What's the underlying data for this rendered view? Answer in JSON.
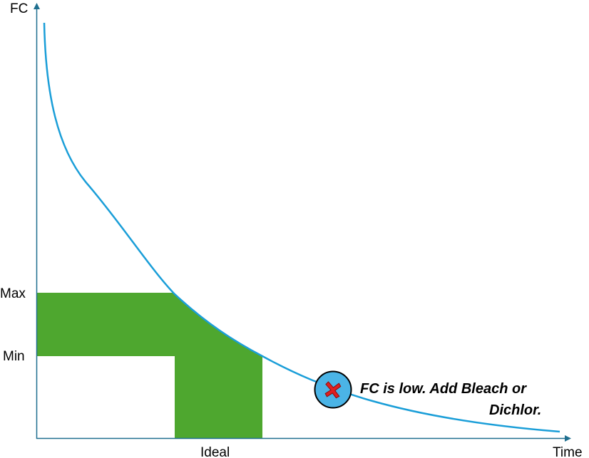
{
  "axes": {
    "y_label": "FC",
    "x_label": "Time"
  },
  "levels": {
    "max_label": "Max",
    "min_label": "Min",
    "ideal_label": "Ideal"
  },
  "status": {
    "icon": "x-mark-icon",
    "line1": "FC is low. Add Bleach or",
    "line2": "Dichlor."
  },
  "colors": {
    "curve": "#1a9ed8",
    "axis": "#1f6f8f",
    "ideal_zone": "#4ea72f",
    "marker_fill": "#4bb4e6",
    "marker_x": "#e02020"
  }
}
